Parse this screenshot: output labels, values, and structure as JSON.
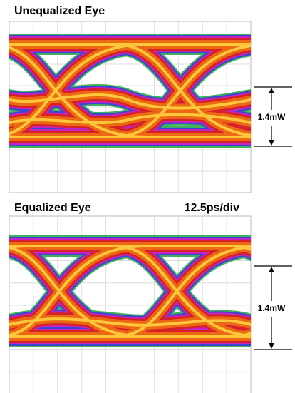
{
  "top": {
    "title": "Unequalized Eye",
    "amplitude": "1.4mW"
  },
  "bottom": {
    "title": "Equalized Eye",
    "timebase": "12.5ps/div",
    "amplitude": "1.4mW"
  }
}
